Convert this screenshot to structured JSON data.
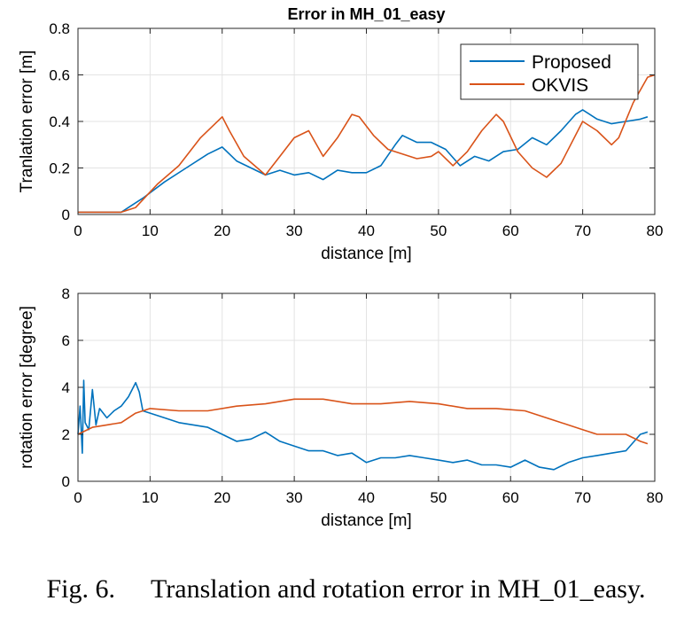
{
  "colors": {
    "proposed": "#0072BD",
    "okvis": "#D95319",
    "grid": "#e3e3e3",
    "axis": "#262626"
  },
  "chart_data": [
    {
      "type": "line",
      "title": "Error in MH_01_easy",
      "xlabel": "distance [m]",
      "ylabel": "Tranlation error [m]",
      "xlim": [
        0,
        80
      ],
      "ylim": [
        0,
        0.8
      ],
      "xticks": [
        "0",
        "10",
        "20",
        "30",
        "40",
        "50",
        "60",
        "70",
        "80"
      ],
      "yticks": [
        "0",
        "0.2",
        "0.4",
        "0.6",
        "0.8"
      ],
      "grid": true,
      "legend_position": "top-right",
      "series": [
        {
          "name": "Proposed",
          "x": [
            0,
            3,
            6,
            7,
            9,
            12,
            15,
            18,
            20,
            22,
            24,
            26,
            28,
            30,
            32,
            34,
            36,
            38,
            40,
            42,
            44,
            45,
            47,
            49,
            51,
            53,
            55,
            57,
            59,
            61,
            63,
            65,
            67,
            69,
            70,
            72,
            74,
            76,
            78,
            79
          ],
          "y": [
            0.01,
            0.01,
            0.01,
            0.03,
            0.07,
            0.14,
            0.2,
            0.26,
            0.29,
            0.23,
            0.2,
            0.17,
            0.19,
            0.17,
            0.18,
            0.15,
            0.19,
            0.18,
            0.18,
            0.21,
            0.3,
            0.34,
            0.31,
            0.31,
            0.28,
            0.21,
            0.25,
            0.23,
            0.27,
            0.28,
            0.33,
            0.3,
            0.36,
            0.43,
            0.45,
            0.41,
            0.39,
            0.4,
            0.41,
            0.42
          ]
        },
        {
          "name": "OKVIS",
          "x": [
            0,
            3,
            6,
            8,
            11,
            14,
            17,
            20,
            21,
            23,
            26,
            28,
            30,
            32,
            34,
            36,
            38,
            39,
            41,
            43,
            45,
            47,
            49,
            50,
            52,
            54,
            56,
            58,
            59,
            61,
            63,
            65,
            67,
            70,
            72,
            74,
            75,
            77,
            79,
            80
          ],
          "y": [
            0.01,
            0.01,
            0.01,
            0.03,
            0.13,
            0.21,
            0.33,
            0.42,
            0.36,
            0.25,
            0.17,
            0.25,
            0.33,
            0.36,
            0.25,
            0.33,
            0.43,
            0.42,
            0.34,
            0.28,
            0.26,
            0.24,
            0.25,
            0.27,
            0.21,
            0.27,
            0.36,
            0.43,
            0.4,
            0.27,
            0.2,
            0.16,
            0.22,
            0.4,
            0.36,
            0.3,
            0.33,
            0.48,
            0.59,
            0.6
          ]
        }
      ]
    },
    {
      "type": "line",
      "title": "",
      "xlabel": "distance [m]",
      "ylabel": "rotation error [degree]",
      "xlim": [
        0,
        80
      ],
      "ylim": [
        0,
        8
      ],
      "xticks": [
        "0",
        "10",
        "20",
        "30",
        "40",
        "50",
        "60",
        "70",
        "80"
      ],
      "yticks": [
        "0",
        "2",
        "4",
        "6",
        "8"
      ],
      "grid": true,
      "series": [
        {
          "name": "Proposed",
          "x": [
            0,
            0.3,
            0.6,
            0.8,
            1,
            1.5,
            2,
            2.5,
            3,
            4,
            5,
            6,
            7,
            8,
            8.5,
            9,
            10,
            12,
            14,
            16,
            18,
            20,
            22,
            24,
            26,
            28,
            30,
            32,
            34,
            36,
            38,
            40,
            42,
            44,
            46,
            48,
            50,
            52,
            54,
            56,
            58,
            60,
            62,
            64,
            66,
            68,
            70,
            72,
            74,
            76,
            78,
            79
          ],
          "y": [
            2.0,
            3.2,
            1.2,
            4.3,
            2.5,
            2.2,
            3.9,
            2.4,
            3.1,
            2.7,
            3.0,
            3.2,
            3.6,
            4.2,
            3.8,
            3.0,
            2.9,
            2.7,
            2.5,
            2.4,
            2.3,
            2.0,
            1.7,
            1.8,
            2.1,
            1.7,
            1.5,
            1.3,
            1.3,
            1.1,
            1.2,
            0.8,
            1.0,
            1.0,
            1.1,
            1.0,
            0.9,
            0.8,
            0.9,
            0.7,
            0.7,
            0.6,
            0.9,
            0.6,
            0.5,
            0.8,
            1.0,
            1.1,
            1.2,
            1.3,
            2.0,
            2.1
          ]
        },
        {
          "name": "OKVIS",
          "x": [
            0,
            2,
            4,
            6,
            8,
            10,
            14,
            18,
            22,
            26,
            30,
            34,
            38,
            42,
            46,
            50,
            54,
            58,
            62,
            66,
            70,
            72,
            74,
            76,
            78,
            79
          ],
          "y": [
            2.0,
            2.3,
            2.4,
            2.5,
            2.9,
            3.1,
            3.0,
            3.0,
            3.2,
            3.3,
            3.5,
            3.5,
            3.3,
            3.3,
            3.4,
            3.3,
            3.1,
            3.1,
            3.0,
            2.6,
            2.2,
            2.0,
            2.0,
            2.0,
            1.7,
            1.6
          ]
        }
      ]
    }
  ],
  "caption": {
    "label": "Fig. 6.",
    "text": "Translation and rotation error in MH_01_easy."
  }
}
